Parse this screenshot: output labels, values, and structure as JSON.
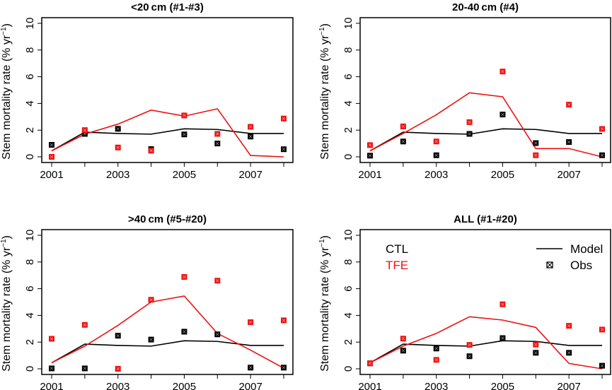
{
  "chart_data": [
    {
      "type": "line",
      "title": "<20 cm (#1-#3)",
      "xlabel": "",
      "ylabel": "Stem mortality rate (% yr⁻¹)",
      "x": [
        2001,
        2002,
        2003,
        2004,
        2005,
        2006,
        2007,
        2008
      ],
      "xticks": [
        2001,
        2002,
        2003,
        2004,
        2005,
        2006,
        2007,
        2008
      ],
      "xtick_labels": [
        "2001",
        "",
        "2003",
        "",
        "2005",
        "",
        "2007",
        ""
      ],
      "yticks": [
        0,
        2,
        4,
        6,
        8,
        10
      ],
      "ylim": [
        0,
        10
      ],
      "grid": false,
      "series": [
        {
          "name": "CTL Model",
          "kind": "line",
          "color": "#000000",
          "values": [
            0.45,
            1.85,
            1.75,
            1.7,
            2.1,
            2.05,
            1.75,
            1.75
          ]
        },
        {
          "name": "TFE Model",
          "kind": "line",
          "color": "#ee1111",
          "values": [
            0.45,
            1.7,
            2.45,
            3.5,
            3.05,
            3.6,
            0.1,
            0.0
          ]
        },
        {
          "name": "CTL Obs",
          "kind": "points",
          "color": "#000000",
          "values": [
            0.9,
            1.72,
            2.1,
            0.58,
            1.68,
            1.0,
            1.52,
            0.57
          ]
        },
        {
          "name": "TFE Obs",
          "kind": "points",
          "color": "#ee1111",
          "values": [
            0.0,
            2.0,
            0.7,
            0.46,
            3.1,
            1.72,
            2.25,
            2.87
          ]
        }
      ]
    },
    {
      "type": "line",
      "title": "20-40 cm (#4)",
      "xlabel": "",
      "ylabel": "Stem mortality rate (% yr⁻¹)",
      "x": [
        2001,
        2002,
        2003,
        2004,
        2005,
        2006,
        2007,
        2008
      ],
      "xticks": [
        2001,
        2002,
        2003,
        2004,
        2005,
        2006,
        2007,
        2008
      ],
      "xtick_labels": [
        "2001",
        "",
        "2003",
        "",
        "2005",
        "",
        "2007",
        ""
      ],
      "yticks": [
        0,
        2,
        4,
        6,
        8,
        10
      ],
      "ylim": [
        0,
        10
      ],
      "grid": false,
      "series": [
        {
          "name": "CTL Model",
          "kind": "line",
          "color": "#000000",
          "values": [
            0.45,
            1.85,
            1.75,
            1.7,
            2.1,
            2.05,
            1.75,
            1.75
          ]
        },
        {
          "name": "TFE Model",
          "kind": "line",
          "color": "#ee1111",
          "values": [
            0.45,
            1.75,
            3.15,
            4.8,
            4.5,
            0.62,
            0.62,
            0.0
          ]
        },
        {
          "name": "CTL Obs",
          "kind": "points",
          "color": "#000000",
          "values": [
            0.09,
            1.15,
            0.12,
            1.72,
            3.17,
            1.03,
            1.11,
            0.12
          ]
        },
        {
          "name": "TFE Obs",
          "kind": "points",
          "color": "#ee1111",
          "values": [
            0.88,
            2.28,
            1.15,
            2.6,
            6.39,
            0.12,
            3.91,
            2.09
          ]
        }
      ]
    },
    {
      "type": "line",
      "title": ">40 cm (#5-#20)",
      "xlabel": "",
      "ylabel": "Stem mortality rate (% yr⁻¹)",
      "x": [
        2001,
        2002,
        2003,
        2004,
        2005,
        2006,
        2007,
        2008
      ],
      "xticks": [
        2001,
        2002,
        2003,
        2004,
        2005,
        2006,
        2007,
        2008
      ],
      "xtick_labels": [
        "2001",
        "",
        "2003",
        "",
        "2005",
        "",
        "2007",
        ""
      ],
      "yticks": [
        0,
        2,
        4,
        6,
        8,
        10
      ],
      "ylim": [
        0,
        10
      ],
      "grid": false,
      "series": [
        {
          "name": "CTL Model",
          "kind": "line",
          "color": "#000000",
          "values": [
            0.45,
            1.85,
            1.75,
            1.7,
            2.1,
            2.05,
            1.75,
            1.75
          ]
        },
        {
          "name": "TFE Model",
          "kind": "line",
          "color": "#ee1111",
          "values": [
            0.45,
            1.7,
            3.25,
            5.0,
            5.45,
            2.65,
            1.4,
            0.05
          ]
        },
        {
          "name": "CTL Obs",
          "kind": "points",
          "color": "#000000",
          "values": [
            0.03,
            0.03,
            2.48,
            2.19,
            2.78,
            2.58,
            0.09,
            0.09
          ]
        },
        {
          "name": "TFE Obs",
          "kind": "points",
          "color": "#ee1111",
          "values": [
            2.25,
            3.29,
            0.0,
            5.17,
            6.88,
            6.6,
            3.49,
            3.63
          ]
        }
      ]
    },
    {
      "type": "line",
      "title": "ALL (#1-#20)",
      "xlabel": "",
      "ylabel": "Stem mortality rate (% yr⁻¹)",
      "x": [
        2001,
        2002,
        2003,
        2004,
        2005,
        2006,
        2007,
        2008
      ],
      "xticks": [
        2001,
        2002,
        2003,
        2004,
        2005,
        2006,
        2007,
        2008
      ],
      "xtick_labels": [
        "2001",
        "",
        "2003",
        "",
        "2005",
        "",
        "2007",
        ""
      ],
      "yticks": [
        0,
        2,
        4,
        6,
        8,
        10
      ],
      "ylim": [
        0,
        10
      ],
      "grid": false,
      "legend": {
        "placement": "top",
        "treatments": [
          {
            "label": "CTL",
            "color": "#000000"
          },
          {
            "label": "TFE",
            "color": "#ee1111"
          }
        ],
        "styles": [
          {
            "label": "Model",
            "symbol": "line"
          },
          {
            "label": "Obs",
            "symbol": "boxed-x"
          }
        ]
      },
      "series": [
        {
          "name": "CTL Model",
          "kind": "line",
          "color": "#000000",
          "values": [
            0.45,
            1.85,
            1.75,
            1.7,
            2.1,
            2.05,
            1.75,
            1.75
          ]
        },
        {
          "name": "TFE Model",
          "kind": "line",
          "color": "#ee1111",
          "values": [
            0.45,
            1.7,
            2.65,
            3.9,
            3.65,
            3.1,
            0.4,
            0.0
          ]
        },
        {
          "name": "CTL Obs",
          "kind": "points",
          "color": "#000000",
          "values": [
            0.41,
            1.36,
            1.52,
            0.94,
            2.3,
            1.2,
            1.2,
            0.23
          ]
        },
        {
          "name": "TFE Obs",
          "kind": "points",
          "color": "#ee1111",
          "values": [
            0.41,
            2.26,
            0.67,
            1.79,
            4.83,
            1.82,
            3.22,
            2.94
          ]
        }
      ]
    }
  ]
}
